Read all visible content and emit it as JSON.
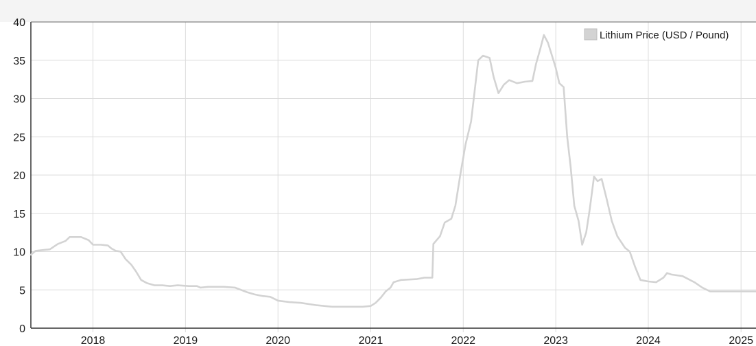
{
  "chart_data": {
    "type": "line",
    "x_type": "date",
    "xlim": [
      "2017-05-01",
      "2025-03-01"
    ],
    "ylim": [
      0,
      40
    ],
    "y_ticks": [
      0,
      5,
      10,
      15,
      20,
      25,
      30,
      35,
      40
    ],
    "x_ticks": [
      {
        "label": "2018",
        "date": "2018-01-01"
      },
      {
        "label": "2019",
        "date": "2019-01-01"
      },
      {
        "label": "2020",
        "date": "2020-01-01"
      },
      {
        "label": "2021",
        "date": "2021-01-01"
      },
      {
        "label": "2022",
        "date": "2022-01-01"
      },
      {
        "label": "2023",
        "date": "2023-01-01"
      },
      {
        "label": "2024",
        "date": "2024-01-01"
      },
      {
        "label": "2025",
        "date": "2025-01-01"
      }
    ],
    "grid": true,
    "legend_position": "top-right",
    "series": [
      {
        "name": "Lithium Price (USD / Pound)",
        "color": "#d3d3d3",
        "points": [
          [
            "2017-05-01",
            9.6
          ],
          [
            "2017-05-20",
            10.1
          ],
          [
            "2017-06-15",
            10.2
          ],
          [
            "2017-07-15",
            10.3
          ],
          [
            "2017-08-15",
            11.0
          ],
          [
            "2017-09-15",
            11.4
          ],
          [
            "2017-10-01",
            11.9
          ],
          [
            "2017-11-15",
            11.9
          ],
          [
            "2017-12-15",
            11.5
          ],
          [
            "2018-01-01",
            10.9
          ],
          [
            "2018-02-01",
            10.9
          ],
          [
            "2018-03-01",
            10.8
          ],
          [
            "2018-03-15",
            10.4
          ],
          [
            "2018-04-01",
            10.1
          ],
          [
            "2018-04-20",
            10.0
          ],
          [
            "2018-05-10",
            9.0
          ],
          [
            "2018-06-01",
            8.3
          ],
          [
            "2018-06-20",
            7.4
          ],
          [
            "2018-07-10",
            6.3
          ],
          [
            "2018-08-01",
            5.9
          ],
          [
            "2018-09-01",
            5.6
          ],
          [
            "2018-10-01",
            5.6
          ],
          [
            "2018-11-01",
            5.5
          ],
          [
            "2018-12-01",
            5.6
          ],
          [
            "2019-01-15",
            5.5
          ],
          [
            "2019-02-15",
            5.5
          ],
          [
            "2019-03-01",
            5.3
          ],
          [
            "2019-04-01",
            5.4
          ],
          [
            "2019-06-01",
            5.4
          ],
          [
            "2019-07-15",
            5.3
          ],
          [
            "2019-09-01",
            4.7
          ],
          [
            "2019-10-01",
            4.4
          ],
          [
            "2019-11-01",
            4.2
          ],
          [
            "2019-12-01",
            4.1
          ],
          [
            "2020-01-01",
            3.6
          ],
          [
            "2020-02-15",
            3.4
          ],
          [
            "2020-04-01",
            3.3
          ],
          [
            "2020-06-01",
            3.0
          ],
          [
            "2020-08-01",
            2.8
          ],
          [
            "2020-10-01",
            2.8
          ],
          [
            "2020-12-01",
            2.8
          ],
          [
            "2021-01-01",
            2.9
          ],
          [
            "2021-01-20",
            3.3
          ],
          [
            "2021-02-10",
            4.0
          ],
          [
            "2021-03-01",
            4.8
          ],
          [
            "2021-03-20",
            5.3
          ],
          [
            "2021-04-01",
            6.0
          ],
          [
            "2021-05-01",
            6.3
          ],
          [
            "2021-07-01",
            6.4
          ],
          [
            "2021-08-01",
            6.6
          ],
          [
            "2021-09-01",
            6.6
          ],
          [
            "2021-09-05",
            11.0
          ],
          [
            "2021-10-01",
            12.0
          ],
          [
            "2021-10-20",
            13.8
          ],
          [
            "2021-11-15",
            14.3
          ],
          [
            "2021-12-01",
            16.0
          ],
          [
            "2021-12-20",
            20.0
          ],
          [
            "2022-01-10",
            24.0
          ],
          [
            "2022-02-01",
            27.0
          ],
          [
            "2022-02-15",
            31.0
          ],
          [
            "2022-03-01",
            35.0
          ],
          [
            "2022-03-20",
            35.6
          ],
          [
            "2022-04-15",
            35.3
          ],
          [
            "2022-05-01",
            32.8
          ],
          [
            "2022-05-20",
            30.7
          ],
          [
            "2022-06-10",
            31.8
          ],
          [
            "2022-07-01",
            32.4
          ],
          [
            "2022-08-01",
            32.0
          ],
          [
            "2022-09-01",
            32.2
          ],
          [
            "2022-10-01",
            32.3
          ],
          [
            "2022-10-15",
            34.5
          ],
          [
            "2022-11-01",
            36.5
          ],
          [
            "2022-11-15",
            38.3
          ],
          [
            "2022-12-01",
            37.3
          ],
          [
            "2022-12-15",
            35.8
          ],
          [
            "2023-01-01",
            34.0
          ],
          [
            "2023-01-15",
            32.0
          ],
          [
            "2023-02-01",
            31.5
          ],
          [
            "2023-02-15",
            25.0
          ],
          [
            "2023-03-01",
            21.0
          ],
          [
            "2023-03-15",
            16.0
          ],
          [
            "2023-04-01",
            14.0
          ],
          [
            "2023-04-15",
            10.9
          ],
          [
            "2023-05-01",
            12.5
          ],
          [
            "2023-05-15",
            15.5
          ],
          [
            "2023-06-01",
            19.8
          ],
          [
            "2023-06-15",
            19.2
          ],
          [
            "2023-07-01",
            19.5
          ],
          [
            "2023-07-20",
            17.0
          ],
          [
            "2023-08-10",
            14.0
          ],
          [
            "2023-09-01",
            12.0
          ],
          [
            "2023-10-01",
            10.5
          ],
          [
            "2023-10-20",
            10.0
          ],
          [
            "2023-11-10",
            8.0
          ],
          [
            "2023-12-01",
            6.3
          ],
          [
            "2024-01-01",
            6.1
          ],
          [
            "2024-02-01",
            6.0
          ],
          [
            "2024-03-01",
            6.6
          ],
          [
            "2024-03-15",
            7.2
          ],
          [
            "2024-04-01",
            7.0
          ],
          [
            "2024-05-15",
            6.8
          ],
          [
            "2024-07-01",
            6.0
          ],
          [
            "2024-08-01",
            5.3
          ],
          [
            "2024-09-01",
            4.8
          ],
          [
            "2024-10-15",
            4.8
          ],
          [
            "2024-11-15",
            4.8
          ],
          [
            "2024-12-15",
            4.8
          ],
          [
            "2025-01-15",
            4.8
          ],
          [
            "2025-03-01",
            4.8
          ]
        ]
      }
    ]
  }
}
